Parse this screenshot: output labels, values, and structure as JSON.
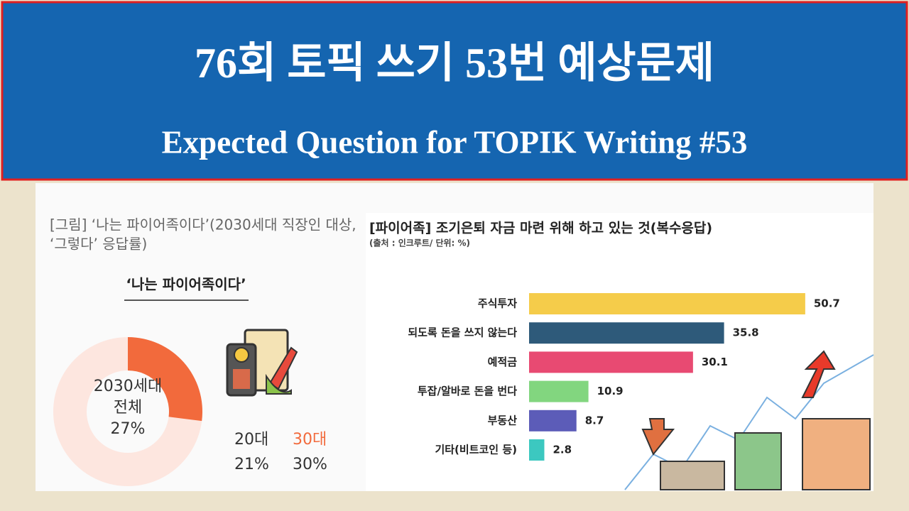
{
  "header": {
    "title": "76회 토픽 쓰기 53번 예상문제",
    "subtitle": "Expected Question for TOPIK Writing #53"
  },
  "chart_data": [
    {
      "type": "pie",
      "title": [
        "[그림] ‘나는 파이어족이다’(2030세대 직장인 대상,",
        "‘그렇다’ 응답률)"
      ],
      "subtitle": "‘나는 파이어족이다’",
      "categories": [
        [
          "2030세대",
          "전체"
        ]
      ],
      "values": [
        27
      ],
      "value_labels": [
        "27%"
      ],
      "color": "#f26a3c",
      "annotations": [
        {
          "label": "20대",
          "value": 21,
          "value_label": "21%",
          "color": "#333333"
        },
        {
          "label": "30대",
          "value": 30,
          "value_label": "30%",
          "color": "#f26a3c"
        }
      ]
    },
    {
      "type": "hbar",
      "title": "[파이어족] 조기은퇴 자금 마련 위해 하고 있는 것(복수응답)",
      "subtitle": "(출처 : 인크루트/  단위: %)",
      "categories": [
        "주식투자",
        "되도록 돈을 쓰지 않는다",
        "예적금",
        "투잡/알바로 돈을 번다",
        "부동산",
        "기타(비트코인 등)"
      ],
      "values": [
        50.7,
        35.8,
        30.1,
        10.9,
        8.7,
        2.8
      ],
      "colors": [
        "#f5cc4a",
        "#2e5a7a",
        "#e84a72",
        "#82d67f",
        "#5c5cb8",
        "#3cc8c0"
      ]
    }
  ]
}
